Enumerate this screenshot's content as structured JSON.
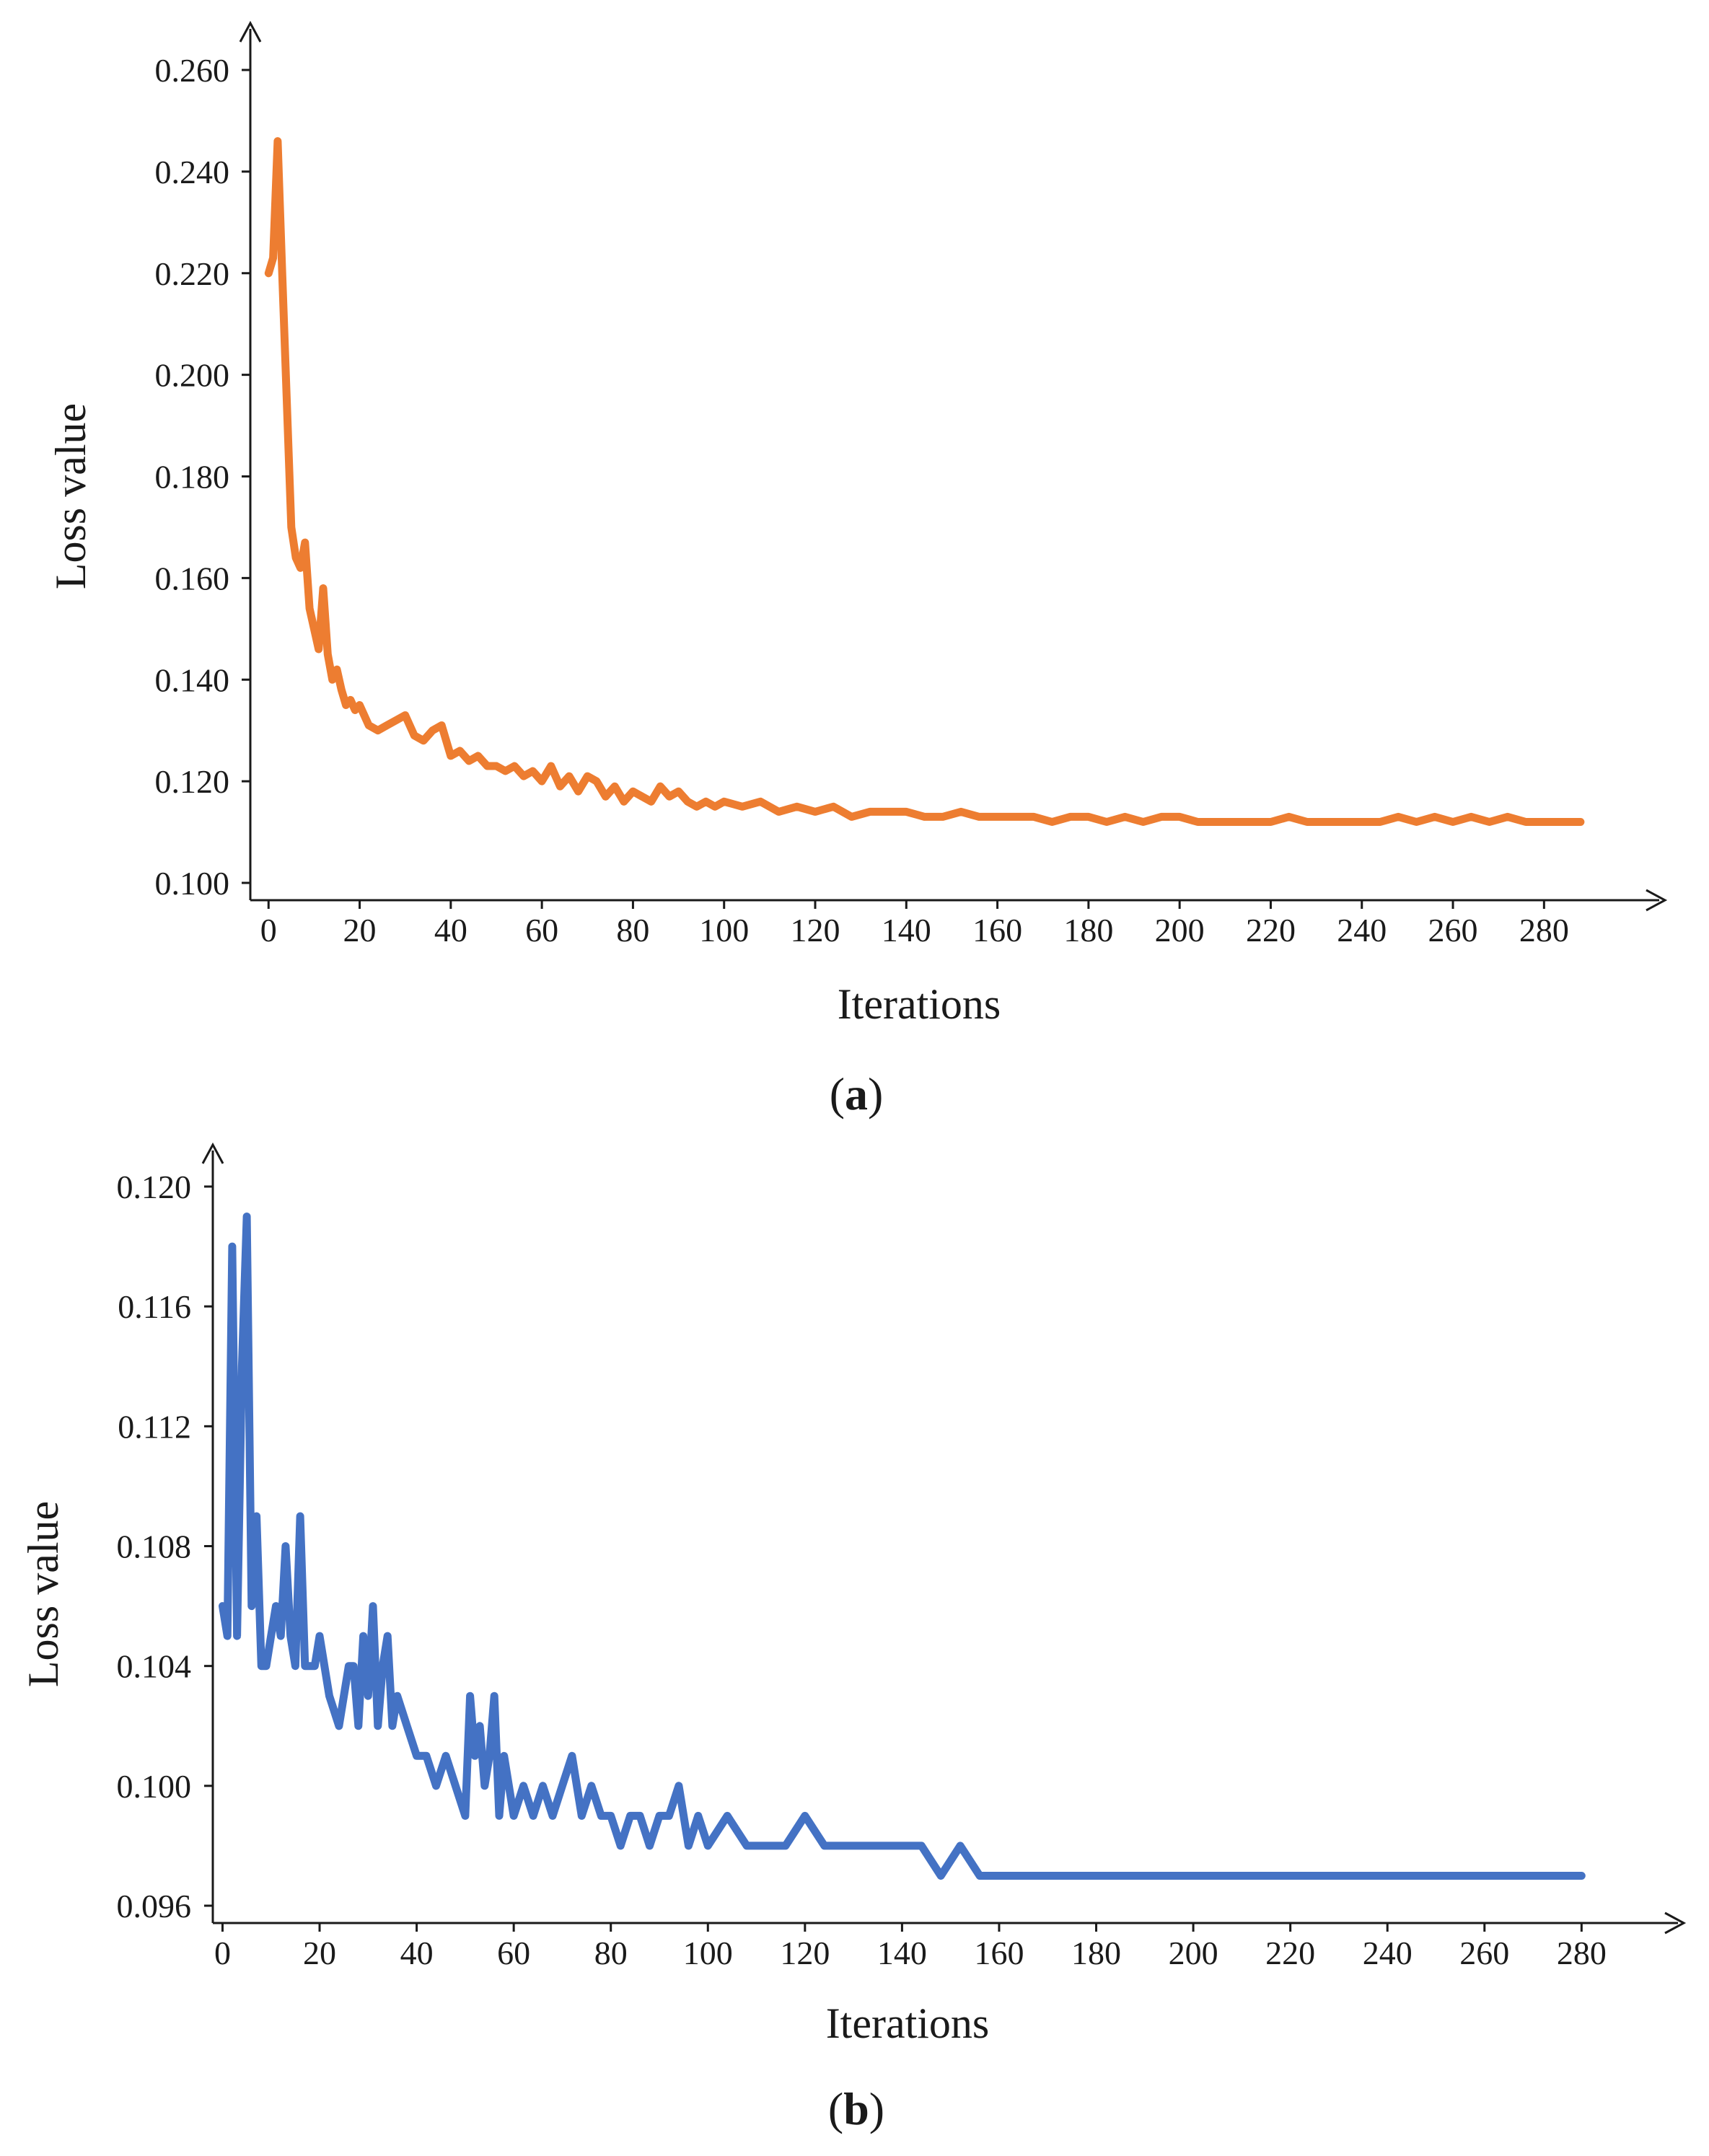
{
  "chart_data": [
    {
      "type": "line",
      "panel_label": "a",
      "xlabel": "Iterations",
      "ylabel": "Loss value",
      "xlim": [
        -4,
        298
      ],
      "ylim": [
        0.1,
        0.26
      ],
      "xticks": [
        0,
        20,
        40,
        60,
        80,
        100,
        120,
        140,
        160,
        180,
        200,
        220,
        240,
        260,
        280
      ],
      "yticks": [
        "0.100",
        "0.120",
        "0.140",
        "0.160",
        "0.180",
        "0.200",
        "0.220",
        "0.240",
        "0.260"
      ],
      "grid": false,
      "color": "#ED7D31",
      "series": [
        {
          "x": [
            0,
            1,
            2,
            3,
            4,
            5,
            6,
            7,
            8,
            9,
            10,
            11,
            12,
            13,
            14,
            15,
            16,
            17,
            18,
            19,
            20,
            22,
            24,
            26,
            28,
            30,
            32,
            34,
            36,
            38,
            40,
            42,
            44,
            46,
            48,
            50,
            52,
            54,
            56,
            58,
            60,
            62,
            64,
            66,
            68,
            70,
            72,
            74,
            76,
            78,
            80,
            82,
            84,
            86,
            88,
            90,
            92,
            94,
            96,
            98,
            100,
            104,
            108,
            112,
            116,
            120,
            124,
            128,
            132,
            136,
            140,
            144,
            148,
            152,
            156,
            160,
            164,
            168,
            172,
            176,
            180,
            184,
            188,
            192,
            196,
            200,
            204,
            208,
            212,
            216,
            220,
            224,
            228,
            232,
            236,
            240,
            244,
            248,
            252,
            256,
            260,
            264,
            268,
            272,
            276,
            280,
            284,
            288
          ],
          "y": [
            0.22,
            0.223,
            0.246,
            0.22,
            0.195,
            0.17,
            0.164,
            0.162,
            0.167,
            0.154,
            0.15,
            0.146,
            0.158,
            0.145,
            0.14,
            0.142,
            0.138,
            0.135,
            0.136,
            0.134,
            0.135,
            0.131,
            0.13,
            0.131,
            0.132,
            0.133,
            0.129,
            0.128,
            0.13,
            0.131,
            0.125,
            0.126,
            0.124,
            0.125,
            0.123,
            0.123,
            0.122,
            0.123,
            0.121,
            0.122,
            0.12,
            0.123,
            0.119,
            0.121,
            0.118,
            0.121,
            0.12,
            0.117,
            0.119,
            0.116,
            0.118,
            0.117,
            0.116,
            0.119,
            0.117,
            0.118,
            0.116,
            0.115,
            0.116,
            0.115,
            0.116,
            0.115,
            0.116,
            0.114,
            0.115,
            0.114,
            0.115,
            0.113,
            0.114,
            0.114,
            0.114,
            0.113,
            0.113,
            0.114,
            0.113,
            0.113,
            0.113,
            0.113,
            0.112,
            0.113,
            0.113,
            0.112,
            0.113,
            0.112,
            0.113,
            0.113,
            0.112,
            0.112,
            0.112,
            0.112,
            0.112,
            0.113,
            0.112,
            0.112,
            0.112,
            0.112,
            0.112,
            0.113,
            0.112,
            0.113,
            0.112,
            0.113,
            0.112,
            0.113,
            0.112,
            0.112,
            0.112,
            0.112
          ]
        }
      ]
    },
    {
      "type": "line",
      "panel_label": "b",
      "xlabel": "Iterations",
      "ylabel": "Loss value",
      "xlim": [
        -2,
        296
      ],
      "ylim": [
        0.096,
        0.12
      ],
      "xticks": [
        0,
        20,
        40,
        60,
        80,
        100,
        120,
        140,
        160,
        180,
        200,
        220,
        240,
        260,
        280
      ],
      "yticks": [
        "0.096",
        "0.100",
        "0.104",
        "0.108",
        "0.112",
        "0.116",
        "0.120"
      ],
      "grid": false,
      "color": "#4472C4",
      "series": [
        {
          "x": [
            0,
            1,
            2,
            3,
            4,
            5,
            6,
            7,
            8,
            9,
            10,
            11,
            12,
            13,
            14,
            15,
            16,
            17,
            18,
            19,
            20,
            22,
            24,
            26,
            27,
            28,
            29,
            30,
            31,
            32,
            33,
            34,
            35,
            36,
            38,
            40,
            42,
            44,
            46,
            48,
            50,
            51,
            52,
            53,
            54,
            55,
            56,
            57,
            58,
            60,
            62,
            64,
            66,
            68,
            70,
            72,
            74,
            76,
            78,
            80,
            82,
            84,
            86,
            88,
            90,
            92,
            94,
            96,
            98,
            100,
            104,
            108,
            112,
            116,
            120,
            124,
            128,
            132,
            136,
            140,
            144,
            148,
            152,
            156,
            160,
            164,
            168,
            172,
            176,
            180,
            184,
            188,
            192,
            196,
            200,
            204,
            208,
            212,
            216,
            220,
            224,
            228,
            232,
            236,
            240,
            244,
            248,
            252,
            256,
            260,
            264,
            268,
            272,
            276,
            280
          ],
          "y": [
            0.106,
            0.105,
            0.118,
            0.105,
            0.114,
            0.119,
            0.106,
            0.109,
            0.104,
            0.104,
            0.105,
            0.106,
            0.105,
            0.108,
            0.105,
            0.104,
            0.109,
            0.104,
            0.104,
            0.104,
            0.105,
            0.103,
            0.102,
            0.104,
            0.104,
            0.102,
            0.105,
            0.103,
            0.106,
            0.102,
            0.104,
            0.105,
            0.102,
            0.103,
            0.102,
            0.101,
            0.101,
            0.1,
            0.101,
            0.1,
            0.099,
            0.103,
            0.101,
            0.102,
            0.1,
            0.101,
            0.103,
            0.099,
            0.101,
            0.099,
            0.1,
            0.099,
            0.1,
            0.099,
            0.1,
            0.101,
            0.099,
            0.1,
            0.099,
            0.099,
            0.098,
            0.099,
            0.099,
            0.098,
            0.099,
            0.099,
            0.1,
            0.098,
            0.099,
            0.098,
            0.099,
            0.098,
            0.098,
            0.098,
            0.099,
            0.098,
            0.098,
            0.098,
            0.098,
            0.098,
            0.098,
            0.097,
            0.098,
            0.097,
            0.097,
            0.097,
            0.097,
            0.097,
            0.097,
            0.097,
            0.097,
            0.097,
            0.097,
            0.097,
            0.097,
            0.097,
            0.097,
            0.097,
            0.097,
            0.097,
            0.097,
            0.097,
            0.097,
            0.097,
            0.097,
            0.097,
            0.097,
            0.097,
            0.097,
            0.097,
            0.097,
            0.097,
            0.097,
            0.097,
            0.097
          ]
        }
      ]
    }
  ]
}
